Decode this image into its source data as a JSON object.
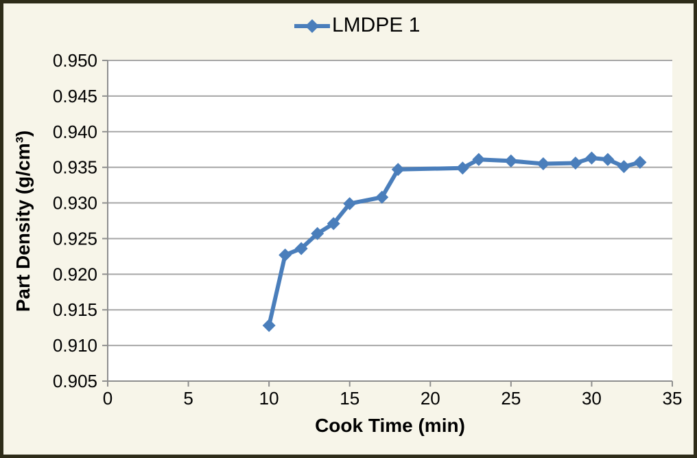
{
  "chart": {
    "legend_label": "LMDPE 1",
    "xlabel": "Cook Time (min)",
    "ylabel": "Part Density (g/cm³)"
  },
  "colors": {
    "series_blue": "#4a7ebb",
    "gridline": "#a6a6a6",
    "axis": "#8e8e8e",
    "page_background": "#f7f5e9",
    "plot_background": "#ffffff",
    "frame_border": "#2e2c19",
    "text": "#000000"
  },
  "chart_data": {
    "type": "line",
    "title": "",
    "xlabel": "Cook Time (min)",
    "ylabel": "Part Density (g/cm³)",
    "xlim": [
      0,
      35
    ],
    "ylim": [
      0.905,
      0.95
    ],
    "x_ticks": [
      0,
      5,
      10,
      15,
      20,
      25,
      30,
      35
    ],
    "y_ticks": [
      0.905,
      0.91,
      0.915,
      0.92,
      0.925,
      0.93,
      0.935,
      0.94,
      0.945,
      0.95
    ],
    "y_tick_decimals": 3,
    "grid": "horizontal",
    "legend_position": "top-center",
    "series": [
      {
        "name": "LMDPE 1",
        "color": "#4a7ebb",
        "marker": "diamond",
        "points": [
          [
            10,
            0.9128
          ],
          [
            11,
            0.9227
          ],
          [
            12,
            0.9236
          ],
          [
            13,
            0.9257
          ],
          [
            14,
            0.9271
          ],
          [
            15,
            0.9299
          ],
          [
            17,
            0.9308
          ],
          [
            18,
            0.9347
          ],
          [
            22,
            0.9349
          ],
          [
            23,
            0.9361
          ],
          [
            25,
            0.9359
          ],
          [
            27,
            0.9355
          ],
          [
            29,
            0.9356
          ],
          [
            30,
            0.9363
          ],
          [
            31,
            0.9361
          ],
          [
            32,
            0.9351
          ],
          [
            33,
            0.9357
          ]
        ]
      }
    ]
  }
}
